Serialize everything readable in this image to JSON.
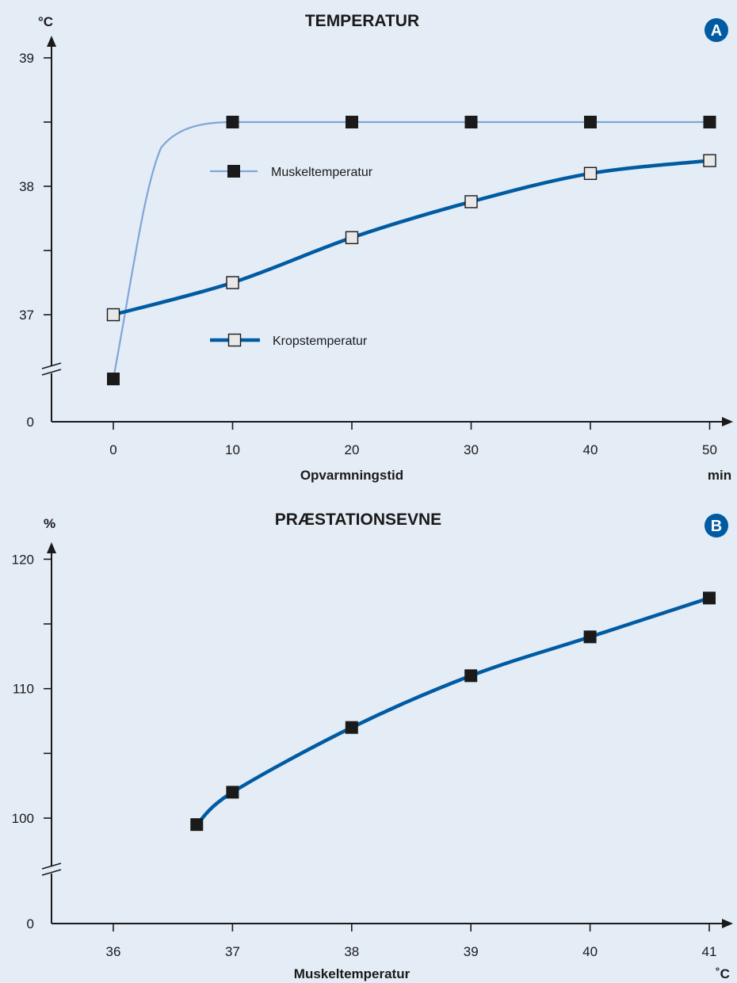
{
  "colors": {
    "background": "#e4ecf6",
    "axis": "#1a1a1a",
    "muscle_line_a": "#7fa6d6",
    "body_line": "#005ba2",
    "marker_filled": "#1a1a1a",
    "marker_open": "#e8e8e8",
    "badge": "#005ba2"
  },
  "chart_data": [
    {
      "type": "line",
      "badge": "A",
      "title": "TEMPERATUR",
      "ylabel": "°C",
      "xlabel": "Opvarmningstid",
      "xunit": "min",
      "x": [
        0,
        10,
        20,
        30,
        40,
        50
      ],
      "x_ticks": [
        "0",
        "10",
        "20",
        "30",
        "40",
        "50"
      ],
      "y_ticks": [
        "0",
        "37",
        "38",
        "39"
      ],
      "ylim": [
        36.2,
        39
      ],
      "axis_break": true,
      "series": [
        {
          "name": "Muskeltemperatur",
          "values": [
            36.5,
            38.5,
            38.5,
            38.5,
            38.5,
            38.5
          ],
          "marker": "filled-square",
          "line": "thin"
        },
        {
          "name": "Kropstemperatur",
          "values": [
            37.0,
            37.25,
            37.6,
            37.88,
            38.1,
            38.2
          ],
          "marker": "open-square",
          "line": "thick"
        }
      ],
      "legend": "inside-left"
    },
    {
      "type": "line",
      "badge": "B",
      "title": "PRÆSTATIONSEVNE",
      "ylabel": "%",
      "xlabel": "Muskeltemperatur",
      "xunit": "˚C",
      "x": [
        36.7,
        37,
        38,
        39,
        40,
        41
      ],
      "x_ticks": [
        "36",
        "37",
        "38",
        "39",
        "40",
        "41"
      ],
      "y_ticks": [
        "0",
        "100",
        "110",
        "120"
      ],
      "ylim": [
        95,
        120
      ],
      "axis_break": true,
      "series": [
        {
          "values": [
            99.5,
            102,
            107,
            111,
            114,
            117
          ],
          "marker": "filled-square",
          "line": "thick"
        }
      ]
    }
  ]
}
